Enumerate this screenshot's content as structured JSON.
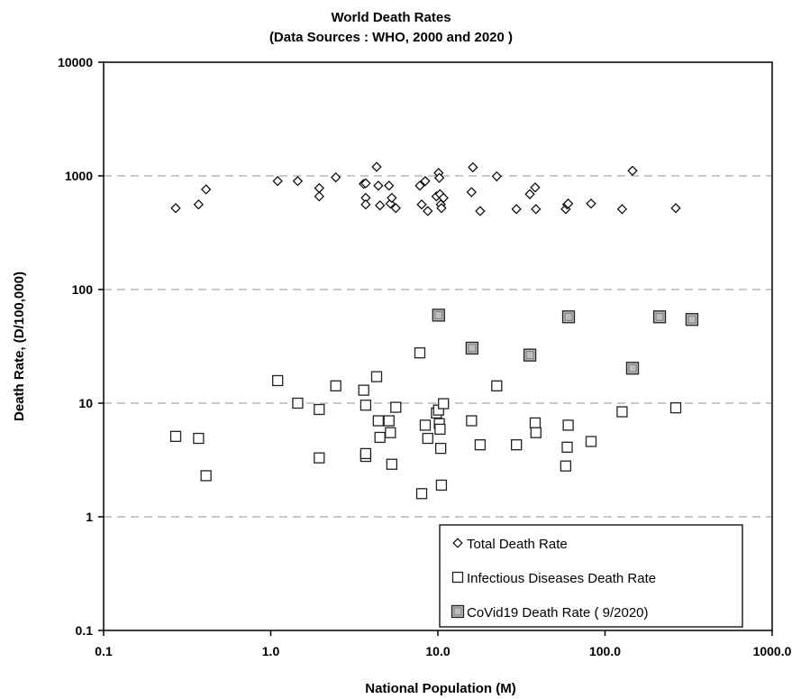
{
  "chart_data": {
    "type": "scatter",
    "title": "World Death Rates",
    "subtitle": "(Data Sources : WHO, 2000 and 2020 )",
    "xlabel": "National Population (M)",
    "ylabel": "Death Rate, (D/100,000)",
    "xscale": "log",
    "yscale": "log",
    "xlim": [
      0.1,
      1000
    ],
    "ylim": [
      0.1,
      10000
    ],
    "x_tick_labels": [
      "0.1",
      "1.0",
      "10.0",
      "100.0",
      "1000.0"
    ],
    "y_tick_labels": [
      "0.1",
      "1",
      "10",
      "100",
      "1000",
      "10000"
    ],
    "grid": "horizontal-dashed",
    "legend_position": "bottom-right",
    "series": [
      {
        "name": "Total Death Rate",
        "marker": "diamond",
        "color": "#ffffff",
        "x": [
          0.27,
          0.37,
          0.41,
          1.1,
          1.45,
          1.95,
          1.95,
          2.45,
          3.6,
          3.7,
          3.7,
          3.7,
          4.3,
          4.4,
          4.5,
          5.1,
          5.2,
          5.3,
          5.6,
          7.8,
          8.0,
          8.4,
          8.7,
          9.8,
          10.1,
          10.2,
          10.3,
          10.4,
          10.5,
          10.8,
          15.9,
          16.2,
          17.9,
          22.5,
          29.5,
          35.5,
          38.2,
          38.6,
          58.2,
          59.4,
          60.2,
          82.5,
          126.5,
          146.0,
          265.0
        ],
        "y": [
          520,
          560,
          760,
          900,
          900,
          780,
          660,
          970,
          850,
          640,
          860,
          560,
          1200,
          820,
          550,
          820,
          570,
          640,
          520,
          820,
          560,
          900,
          490,
          660,
          1060,
          960,
          690,
          560,
          520,
          640,
          720,
          1190,
          490,
          990,
          510,
          690,
          790,
          510,
          510,
          560,
          570,
          570,
          510,
          1110,
          520
        ]
      },
      {
        "name": "Infectious Diseases Death Rate",
        "marker": "square",
        "color": "#ffffff",
        "x": [
          0.27,
          0.37,
          0.41,
          1.1,
          1.45,
          1.95,
          1.95,
          2.45,
          3.6,
          3.7,
          3.7,
          3.7,
          4.3,
          4.4,
          4.5,
          5.1,
          5.2,
          5.3,
          5.6,
          7.8,
          8.0,
          8.4,
          8.7,
          9.8,
          10.1,
          10.2,
          10.3,
          10.4,
          10.5,
          10.8,
          15.9,
          17.9,
          22.5,
          29.5,
          38.2,
          38.6,
          58.2,
          59.4,
          60.2,
          82.5,
          126.5,
          265.0
        ],
        "y": [
          5.1,
          4.9,
          2.3,
          15.8,
          10.0,
          8.8,
          3.3,
          14.2,
          13.0,
          3.4,
          9.6,
          3.6,
          17.1,
          7.0,
          5.0,
          7.0,
          5.5,
          2.9,
          9.2,
          27.7,
          1.6,
          6.4,
          4.9,
          8.2,
          8.7,
          6.6,
          5.9,
          4.0,
          1.9,
          9.9,
          7.0,
          4.3,
          14.2,
          4.3,
          6.7,
          5.5,
          2.8,
          4.1,
          6.4,
          4.6,
          8.4,
          9.1
        ]
      },
      {
        "name": "CoVid19 Death Rate ( 9/2020)",
        "marker": "square-filled",
        "color": "#bdbdbd",
        "x": [
          10.1,
          16.0,
          35.5,
          60.5,
          146.0,
          212.0,
          331.0
        ],
        "y": [
          59.5,
          30.5,
          26.5,
          57.5,
          20.3,
          57.5,
          54.5
        ]
      }
    ]
  }
}
